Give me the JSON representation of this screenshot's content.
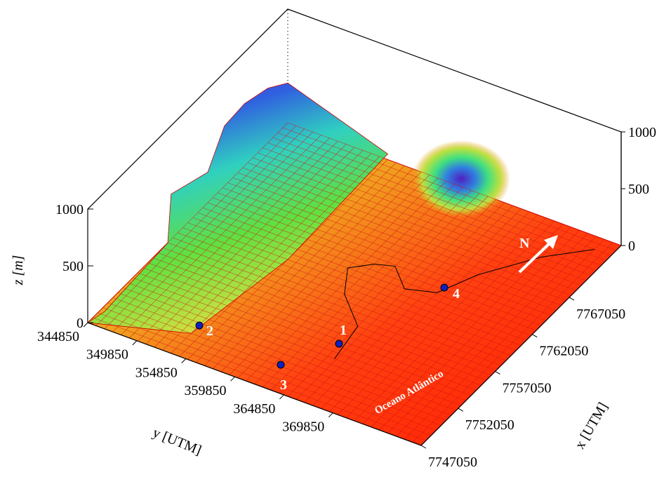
{
  "chart_data": {
    "type": "surface3d",
    "z_label": "z [m]",
    "y_label": "y [UTM]",
    "x_label": "x [UTM]",
    "zlim": [
      0,
      1000
    ],
    "zticks": [
      0,
      500,
      1000
    ],
    "ylim": [
      344850,
      378850
    ],
    "yticks": [
      344850,
      349850,
      354850,
      359850,
      364850,
      369850
    ],
    "xlim": [
      7747050,
      7774050
    ],
    "xticks": [
      7747050,
      7752050,
      7757050,
      7762050,
      7767050
    ],
    "stations": [
      "1",
      "2",
      "3",
      "4"
    ],
    "north_label": "N",
    "ocean_label": "Oceano Atlântico"
  }
}
